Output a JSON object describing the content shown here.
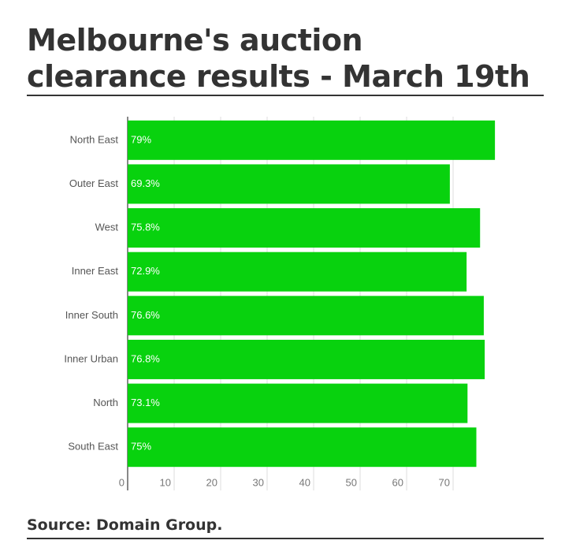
{
  "chart_data": {
    "type": "bar",
    "orientation": "horizontal",
    "title": "Melbourne's auction clearance results - March 19th",
    "source": "Source: Domain Group.",
    "categories": [
      "North East",
      "Outer East",
      "West",
      "Inner East",
      "Inner South",
      "Inner Urban",
      "North",
      "South East"
    ],
    "values": [
      79,
      69.3,
      75.8,
      72.9,
      76.6,
      76.8,
      73.1,
      75
    ],
    "value_labels": [
      "79%",
      "69.3%",
      "75.8%",
      "72.9%",
      "76.6%",
      "76.8%",
      "73.1%",
      "75%"
    ],
    "color": "#08d20e",
    "xlim": [
      0,
      80
    ],
    "xticks": [
      0,
      10,
      20,
      30,
      40,
      50,
      60,
      70
    ],
    "grid": true
  }
}
